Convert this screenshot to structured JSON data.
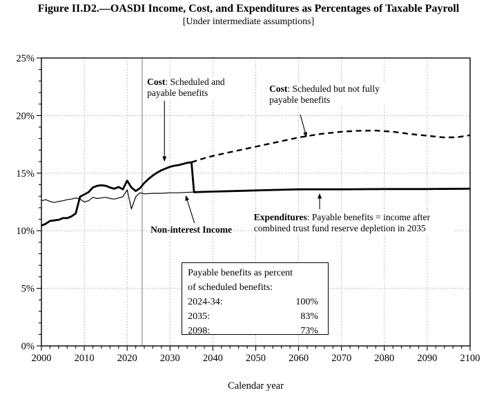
{
  "figure": {
    "title": "Figure II.D2.—OASDI Income, Cost, and Expenditures as Percentages of Taxable Payroll",
    "subtitle": "[Under intermediate assumptions]"
  },
  "chart_data": {
    "type": "line",
    "title": "Figure II.D2.—OASDI Income, Cost, and Expenditures as Percentages of Taxable Payroll",
    "subtitle": "[Under intermediate assumptions]",
    "xlabel": "Calendar year",
    "x_range": [
      2000,
      2100
    ],
    "y_range": [
      0,
      25
    ],
    "x_ticks": [
      2000,
      2010,
      2020,
      2030,
      2040,
      2050,
      2060,
      2070,
      2080,
      2090,
      2100
    ],
    "x_minor_step": 2,
    "y_ticks": [
      {
        "value": 0,
        "label": "0%"
      },
      {
        "value": 5,
        "label": "5%"
      },
      {
        "value": 10,
        "label": "10%"
      },
      {
        "value": 15,
        "label": "15%"
      },
      {
        "value": 20,
        "label": "20%"
      },
      {
        "value": 25,
        "label": "25%"
      }
    ],
    "y_minor_step": 1,
    "grid_y": [
      5,
      10,
      15,
      20
    ],
    "grid_x": [
      2010,
      2020,
      2030,
      2040,
      2050,
      2060,
      2070,
      2080,
      2090
    ],
    "grid_on": true,
    "legend_position": "inline-annotations",
    "historical_boundary_year": 2023.5,
    "line_color": "#000000",
    "gridline_color": "#9a9a9a",
    "series": [
      {
        "name": "Cost: Scheduled and payable benefits",
        "style": "thick-solid",
        "x": [
          2000,
          2001,
          2002,
          2003,
          2004,
          2005,
          2006,
          2007,
          2008,
          2009,
          2010,
          2011,
          2012,
          2013,
          2014,
          2015,
          2016,
          2017,
          2018,
          2019,
          2020,
          2021,
          2022,
          2023,
          2024,
          2025,
          2026,
          2027,
          2028,
          2029,
          2030,
          2031,
          2032,
          2033,
          2034,
          2035
        ],
        "y": [
          10.45,
          10.6,
          10.85,
          10.9,
          10.95,
          11.1,
          11.1,
          11.25,
          11.5,
          12.95,
          13.15,
          13.35,
          13.75,
          13.9,
          13.95,
          13.9,
          13.75,
          13.65,
          13.8,
          13.6,
          14.35,
          13.75,
          13.45,
          13.7,
          14.15,
          14.5,
          14.8,
          15.05,
          15.25,
          15.4,
          15.55,
          15.65,
          15.7,
          15.8,
          15.9,
          15.95
        ]
      },
      {
        "name": "Cost: Scheduled but not fully payable benefits",
        "style": "dashed",
        "x": [
          2035,
          2038,
          2040,
          2045,
          2050,
          2055,
          2060,
          2065,
          2070,
          2074,
          2078,
          2082,
          2086,
          2090,
          2094,
          2097,
          2100
        ],
        "y": [
          15.95,
          16.3,
          16.5,
          16.9,
          17.3,
          17.7,
          18.1,
          18.4,
          18.6,
          18.68,
          18.7,
          18.6,
          18.4,
          18.25,
          18.1,
          18.12,
          18.3
        ]
      },
      {
        "name": "Expenditures: Payable benefits = income after combined trust fund reserve depletion in 2035",
        "style": "thick-solid",
        "x": [
          2035,
          2035.6,
          2040,
          2045,
          2050,
          2055,
          2060,
          2070,
          2080,
          2090,
          2100
        ],
        "y": [
          15.95,
          13.35,
          13.4,
          13.45,
          13.5,
          13.55,
          13.6,
          13.6,
          13.62,
          13.62,
          13.65
        ]
      },
      {
        "name": "Non-interest Income",
        "style": "thin-solid",
        "x": [
          2000,
          2001,
          2002,
          2003,
          2004,
          2005,
          2006,
          2007,
          2008,
          2009,
          2010,
          2011,
          2012,
          2013,
          2014,
          2015,
          2016,
          2017,
          2018,
          2019,
          2020,
          2021,
          2022,
          2023,
          2024,
          2026,
          2028,
          2030,
          2032,
          2035,
          2040,
          2050,
          2060,
          2070,
          2080,
          2090,
          2100
        ],
        "y": [
          12.6,
          12.7,
          12.55,
          12.45,
          12.55,
          12.6,
          12.7,
          12.75,
          12.85,
          12.75,
          12.5,
          12.6,
          12.9,
          12.8,
          12.85,
          12.9,
          12.8,
          12.75,
          12.85,
          12.95,
          13.55,
          11.9,
          12.95,
          13.3,
          13.2,
          13.25,
          13.25,
          13.3,
          13.3,
          13.35,
          13.4,
          13.5,
          13.55,
          13.6,
          13.6,
          13.6,
          13.65
        ]
      }
    ],
    "annotations": {
      "cost_payable": {
        "bold": "Cost",
        "rest": ": Scheduled and payable benefits",
        "anchor_year": 2024.5,
        "anchor_pct": 23.38,
        "arrow": {
          "x1": 2028.7,
          "y1": 21.3,
          "x2": 2028.7,
          "y2": 16.07
        }
      },
      "cost_scheduled": {
        "bold": "Cost",
        "rest": ": Scheduled but not fully payable benefits",
        "anchor_year": 2053.0,
        "anchor_pct": 22.78,
        "arrow": {
          "x1": 2060.4,
          "y1": 20.08,
          "x2": 2061.8,
          "y2": 18.17
        }
      },
      "non_interest": {
        "bold": "Non-interest Income",
        "rest": "",
        "anchor_year": 2025.3,
        "anchor_pct": 10.55,
        "arrow": {
          "x1": 2035.7,
          "y1": 10.67,
          "x2": 2033.7,
          "y2": 13.01
        }
      },
      "expenditures": {
        "bold": "Expenditures",
        "rest": ": Payable benefits = income after combined trust fund reserve depletion in 2035",
        "anchor_year": 2049.4,
        "anchor_pct": 11.63,
        "arrow": {
          "x1": 2064.9,
          "y1": 11.87,
          "x2": 2064.9,
          "y2": 13.19
        }
      }
    },
    "payable_box": {
      "anchor_year": 2032.7,
      "anchor_pct": 7.25,
      "line1": "Payable benefits as percent",
      "line2": "of scheduled benefits:",
      "rows": [
        {
          "label": "2024-34:",
          "value": "100%"
        },
        {
          "label": "2035:",
          "value": "83%"
        },
        {
          "label": "2098:",
          "value": "73%"
        }
      ]
    }
  }
}
